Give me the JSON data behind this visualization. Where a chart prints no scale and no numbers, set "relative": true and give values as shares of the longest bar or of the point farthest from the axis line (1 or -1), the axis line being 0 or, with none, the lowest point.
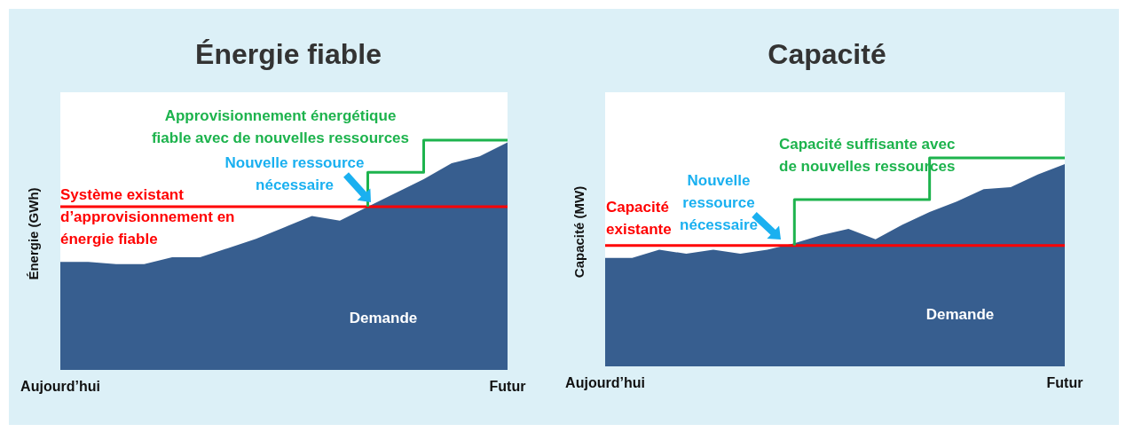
{
  "chart_data": [
    {
      "type": "area",
      "title": "Énergie fiable",
      "ylabel": "Énergie (GWh)",
      "relative": true,
      "categories": [
        "Aujourd’hui",
        null,
        null,
        null,
        null,
        null,
        null,
        null,
        null,
        null,
        null,
        null,
        null,
        null,
        null,
        null,
        "Futur"
      ],
      "series": [
        {
          "name": "Demande",
          "color": "#375e8f",
          "values": [
            0.47,
            0.47,
            0.46,
            0.46,
            0.49,
            0.49,
            0.53,
            0.57,
            0.62,
            0.67,
            0.65,
            0.71,
            0.77,
            0.83,
            0.9,
            0.93,
            0.99
          ]
        },
        {
          "type": "step",
          "color": "#1db34d",
          "values": [
            null,
            null,
            null,
            null,
            null,
            null,
            null,
            null,
            null,
            null,
            null,
            0.71,
            0.86,
            0.86,
            1,
            1,
            1
          ]
        }
      ],
      "ref_lines": [
        {
          "axis": "y",
          "value": 0.71,
          "label": "Système existant d’approvisionnement en énergie fiable",
          "color": "#ff0000"
        }
      ],
      "annotations": [
        "Approvisionnement énergétique fiable avec de nouvelles ressources",
        "Nouvelle ressource nécessaire"
      ]
    },
    {
      "type": "area",
      "title": "Capacité",
      "ylabel": "Capacité (MW)",
      "relative": true,
      "categories": [
        "Aujourd’hui",
        null,
        null,
        null,
        null,
        null,
        null,
        null,
        null,
        null,
        null,
        null,
        null,
        null,
        null,
        null,
        null,
        "Futur"
      ],
      "series": [
        {
          "name": "Demande",
          "color": "#375e8f",
          "values": [
            0.52,
            0.52,
            0.56,
            0.54,
            0.56,
            0.54,
            0.56,
            0.59,
            0.63,
            0.66,
            0.61,
            0.68,
            0.74,
            0.79,
            0.85,
            0.86,
            0.92,
            0.97
          ]
        },
        {
          "type": "step",
          "color": "#1db34d",
          "values": [
            null,
            null,
            null,
            null,
            null,
            null,
            null,
            0.58,
            0.8,
            0.8,
            0.8,
            0.8,
            0.8,
            1,
            1,
            1,
            1,
            1
          ]
        }
      ],
      "ref_lines": [
        {
          "axis": "y",
          "value": 0.58,
          "label": "Capacité existante",
          "color": "#ff0000"
        }
      ],
      "annotations": [
        "Capacité suffisante avec de nouvelles ressources",
        "Nouvelle ressource nécessaire"
      ]
    }
  ]
}
